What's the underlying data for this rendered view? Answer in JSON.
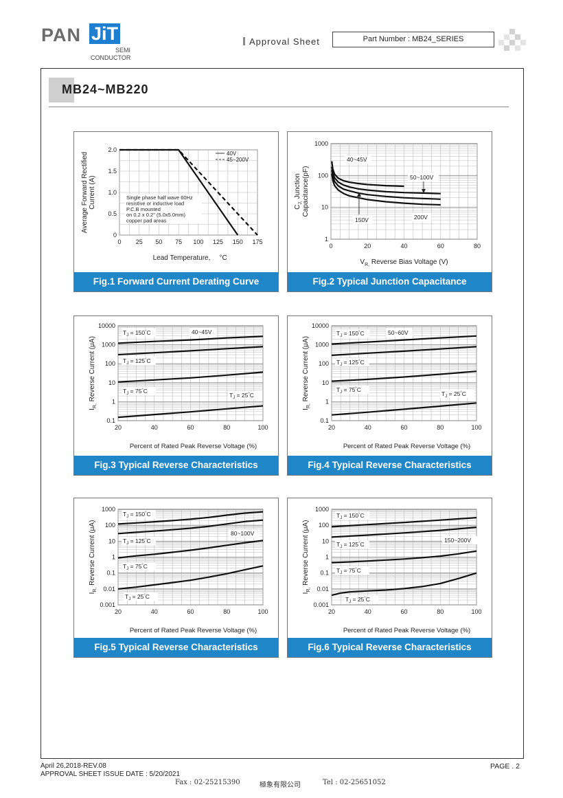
{
  "header": {
    "logo_main": "PAN",
    "logo_jit": "JiT",
    "logo_sub1": "SEMI",
    "logo_sub2": "CONDUCTOR",
    "approval": "Approval  Sheet",
    "part_number": "Part Number : MB24_SERIES"
  },
  "title": "MB24~MB220",
  "footer": {
    "rev": "April 26,2018-REV.08",
    "issue": "APPROVAL SHEET ISSUE DATE : 5/20/2021",
    "fax": "Fax : 02-25215390",
    "company": "極象有限公司",
    "tel": "Tel : 02-25651052",
    "page": "PAGE . 2"
  },
  "chart_data": [
    {
      "type": "line",
      "caption": "Fig.1 Forward Current Derating Curve",
      "xlabel": "Lead Temperature,",
      "xunit": "°C",
      "ylabel": [
        "Average Forward Rectified",
        "Current (A)"
      ],
      "xlim": [
        0,
        175
      ],
      "ylim": [
        0,
        2.0
      ],
      "xticks": [
        0,
        25,
        50,
        75,
        100,
        125,
        150,
        175
      ],
      "yticks": [
        0,
        0.5,
        1.0,
        1.5,
        2.0
      ],
      "ytick_labels": [
        "0",
        "0.5",
        "1.0",
        "1.5",
        "2.0"
      ],
      "grid": true,
      "legend": "top-right",
      "annotation": [
        "Single phase half wave 60Hz",
        "resistive or inductive load",
        "P.C.B mounted",
        "on 0.2 x 0.2\" (5.0x5.0mm)",
        "copper pad areas"
      ],
      "series": [
        {
          "name": "40V",
          "style": "solid",
          "x": [
            0,
            75,
            150
          ],
          "y": [
            2.0,
            2.0,
            0
          ]
        },
        {
          "name": "45~200V",
          "style": "dashed",
          "x": [
            0,
            75,
            175
          ],
          "y": [
            2.0,
            2.0,
            0
          ]
        }
      ]
    },
    {
      "type": "line",
      "caption": "Fig.2 Typical Junction Capacitance",
      "xlabel": "Reverse Bias Voltage (V)",
      "xlabel_prefix": "V",
      "xlabel_sub": "R,",
      "ylabel": [
        "C",
        "Junction",
        "Capacitance(pF)"
      ],
      "ylabel_sub": "J,",
      "xlim": [
        0,
        80
      ],
      "ylim": [
        1,
        1000
      ],
      "yscale": "log",
      "xticks": [
        0,
        20,
        40,
        60,
        80
      ],
      "yticks": [
        1,
        10,
        100,
        1000
      ],
      "grid": true,
      "labels": [
        "40~45V",
        "50~100V",
        "150V",
        "200V"
      ],
      "series": [
        {
          "name": "40~45V",
          "x": [
            0.5,
            1,
            2,
            4,
            7,
            10,
            15,
            20,
            30,
            40
          ],
          "y": [
            280,
            160,
            110,
            82,
            68,
            62,
            56,
            52,
            48,
            46
          ]
        },
        {
          "name": "50~100V",
          "x": [
            0.5,
            1,
            2,
            4,
            7,
            10,
            15,
            20,
            30,
            40,
            50,
            60
          ],
          "y": [
            190,
            120,
            85,
            62,
            50,
            44,
            38,
            35,
            31,
            29,
            28,
            27
          ]
        },
        {
          "name": "150V",
          "x": [
            0.5,
            1,
            2,
            4,
            7,
            10,
            15,
            20,
            30,
            40,
            50,
            60
          ],
          "y": [
            150,
            95,
            65,
            47,
            37,
            33,
            28,
            25,
            22,
            20,
            19,
            18
          ]
        },
        {
          "name": "200V",
          "x": [
            0.5,
            1,
            2,
            4,
            7,
            10,
            15,
            20,
            30,
            40,
            50,
            60
          ],
          "y": [
            115,
            70,
            48,
            35,
            27,
            23,
            20,
            17.5,
            15,
            13.5,
            12.5,
            12
          ]
        }
      ]
    },
    {
      "type": "line",
      "caption": "Fig.3 Typical Reverse Characteristics",
      "xlabel": "Percent of Rated Peak Reverse Voltage (%)",
      "ylabel": [
        "I",
        "Reverse Current (μA)"
      ],
      "ylabel_sub": "R,",
      "xlim": [
        20,
        100
      ],
      "ylim": [
        0.1,
        10000
      ],
      "yscale": "log",
      "xticks": [
        20,
        40,
        60,
        80,
        100
      ],
      "yticks": [
        0.1,
        1,
        10,
        100,
        1000,
        10000
      ],
      "grid": true,
      "device": "40~45V",
      "tj_labels": [
        "T",
        "= 150",
        "C",
        "T",
        "= 125",
        "C",
        "T",
        "= 75",
        "C",
        "T",
        "= 25",
        "C"
      ],
      "series": [
        {
          "name": "150",
          "x": [
            20,
            40,
            60,
            80,
            100
          ],
          "y": [
            1200,
            1500,
            1800,
            2300,
            2800
          ]
        },
        {
          "name": "125",
          "x": [
            20,
            40,
            60,
            80,
            100
          ],
          "y": [
            300,
            380,
            480,
            620,
            800
          ]
        },
        {
          "name": "75",
          "x": [
            20,
            40,
            60,
            80,
            100
          ],
          "y": [
            11,
            14,
            18,
            25,
            36
          ]
        },
        {
          "name": "25",
          "x": [
            20,
            40,
            60,
            80,
            100
          ],
          "y": [
            0.15,
            0.21,
            0.29,
            0.42,
            0.6
          ]
        }
      ]
    },
    {
      "type": "line",
      "caption": "Fig.4 Typical Reverse Characteristics",
      "xlabel": "Percent of Rated Peak Reverse Voltage (%)",
      "ylabel": [
        "I",
        "Reverse Current (μA)"
      ],
      "ylabel_sub": "R,",
      "xlim": [
        20,
        100
      ],
      "ylim": [
        0.1,
        10000
      ],
      "yscale": "log",
      "xticks": [
        20,
        40,
        60,
        80,
        100
      ],
      "yticks": [
        0.1,
        1,
        10,
        100,
        1000,
        10000
      ],
      "grid": true,
      "device": "50~60V",
      "tj_labels": [
        "T",
        "= 150",
        "C",
        "T",
        "= 125",
        "C",
        "T",
        "= 75",
        "C",
        "T",
        "= 25",
        "C"
      ],
      "series": [
        {
          "name": "150",
          "x": [
            20,
            40,
            60,
            80,
            100
          ],
          "y": [
            1100,
            1400,
            1800,
            2300,
            2900
          ]
        },
        {
          "name": "125",
          "x": [
            20,
            40,
            60,
            80,
            100
          ],
          "y": [
            280,
            360,
            460,
            600,
            800
          ]
        },
        {
          "name": "75",
          "x": [
            20,
            40,
            60,
            80,
            100
          ],
          "y": [
            12,
            15,
            20,
            28,
            40
          ]
        },
        {
          "name": "25",
          "x": [
            20,
            40,
            60,
            80,
            100
          ],
          "y": [
            0.2,
            0.28,
            0.4,
            0.58,
            0.85
          ]
        }
      ]
    },
    {
      "type": "line",
      "caption": "Fig.5 Typical Reverse Characteristics",
      "xlabel": "Percent of Rated Peak Reverse Voltage (%)",
      "ylabel": [
        "I",
        "Reverse Current (μA)"
      ],
      "ylabel_sub": "R,",
      "xlim": [
        20,
        100
      ],
      "ylim": [
        0.001,
        1000
      ],
      "yscale": "log",
      "xticks": [
        20,
        40,
        60,
        80,
        100
      ],
      "yticks": [
        0.001,
        0.01,
        0.1,
        1,
        10,
        100,
        1000
      ],
      "grid": true,
      "device": "80~100V",
      "tj_labels": [
        "T",
        "= 150",
        "C",
        "T",
        "= 125",
        "C",
        "T",
        "= 75",
        "C",
        "T",
        "= 25",
        "C"
      ],
      "series": [
        {
          "name": "150",
          "x": [
            20,
            30,
            40,
            50,
            60,
            70,
            80,
            90,
            100
          ],
          "y": [
            120,
            140,
            165,
            195,
            240,
            310,
            430,
            580,
            700
          ]
        },
        {
          "name": "125",
          "x": [
            20,
            30,
            40,
            50,
            60,
            70,
            80,
            90,
            100
          ],
          "y": [
            30,
            36,
            43,
            52,
            65,
            85,
            120,
            170,
            210
          ]
        },
        {
          "name": "75",
          "x": [
            20,
            30,
            40,
            50,
            60,
            70,
            80,
            90,
            100
          ],
          "y": [
            0.9,
            1.2,
            1.5,
            2.0,
            2.7,
            3.8,
            5.5,
            8,
            11
          ]
        },
        {
          "name": "25",
          "x": [
            20,
            30,
            40,
            50,
            60,
            70,
            80,
            90,
            100
          ],
          "y": [
            0.01,
            0.013,
            0.018,
            0.025,
            0.035,
            0.055,
            0.09,
            0.16,
            0.28
          ]
        }
      ]
    },
    {
      "type": "line",
      "caption": "Fig.6 Typical Reverse Characteristics",
      "xlabel": "Percent of Rated Peak Reverse Voltage (%)",
      "ylabel": [
        "I",
        "Reverse Current (μA)"
      ],
      "ylabel_sub": "R,",
      "xlim": [
        20,
        100
      ],
      "ylim": [
        0.001,
        1000
      ],
      "yscale": "log",
      "xticks": [
        20,
        40,
        60,
        80,
        100
      ],
      "yticks": [
        0.001,
        0.01,
        0.1,
        1,
        10,
        100,
        1000
      ],
      "grid": true,
      "device": "150~200V",
      "tj_labels": [
        "T",
        "= 150",
        "C",
        "T",
        "= 125",
        "C",
        "T",
        "= 75",
        "C",
        "T",
        "= 25",
        "C"
      ],
      "series": [
        {
          "name": "150",
          "x": [
            20,
            40,
            60,
            80,
            100
          ],
          "y": [
            80,
            110,
            150,
            210,
            300
          ]
        },
        {
          "name": "125",
          "x": [
            20,
            40,
            60,
            80,
            100
          ],
          "y": [
            18,
            24,
            33,
            48,
            75
          ]
        },
        {
          "name": "75",
          "x": [
            20,
            30,
            40,
            50,
            60,
            70,
            80,
            90,
            100
          ],
          "y": [
            0.45,
            0.5,
            0.57,
            0.65,
            0.76,
            0.92,
            1.15,
            1.6,
            2.4
          ]
        },
        {
          "name": "25",
          "x": [
            20,
            25,
            30,
            40,
            50,
            60,
            70,
            80,
            90,
            100
          ],
          "y": [
            0.004,
            0.0055,
            0.0065,
            0.0075,
            0.0085,
            0.0105,
            0.014,
            0.022,
            0.045,
            0.1
          ]
        }
      ]
    }
  ]
}
